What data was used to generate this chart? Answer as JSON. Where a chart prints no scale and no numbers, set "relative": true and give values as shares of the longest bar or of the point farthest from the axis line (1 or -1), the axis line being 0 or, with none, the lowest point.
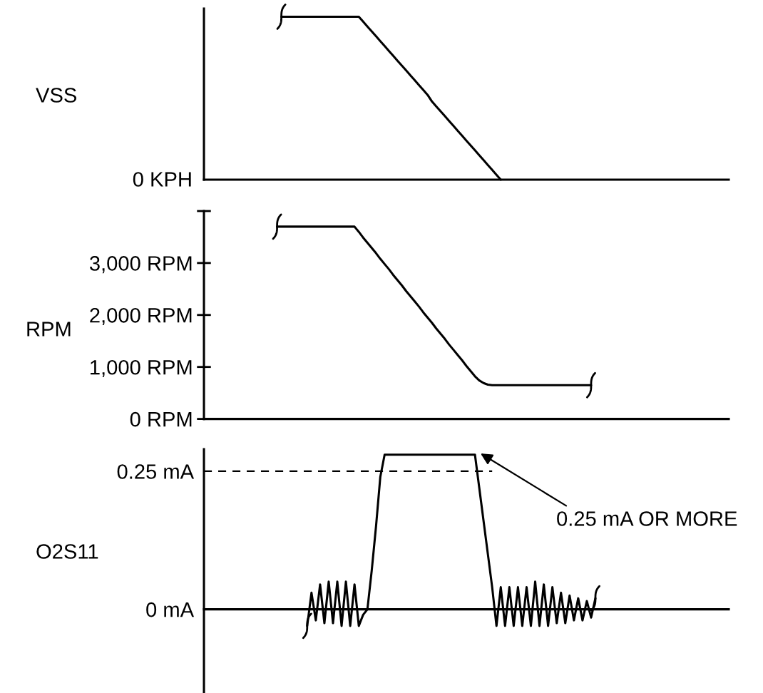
{
  "chart_data": [
    {
      "type": "line",
      "ylabel": "VSS",
      "relative": true,
      "tick_labels": false,
      "categories": [
        null,
        null,
        null,
        null,
        null,
        null,
        null,
        null,
        null,
        null,
        null,
        null,
        null,
        null,
        null,
        null,
        null,
        null,
        null,
        null,
        null,
        null,
        null,
        null,
        null,
        null,
        null,
        null,
        null,
        null,
        null,
        null,
        null,
        null,
        null,
        null,
        null,
        null,
        null,
        null,
        null,
        null,
        null,
        null,
        null,
        null,
        null,
        null,
        null,
        null,
        null,
        null,
        null,
        null,
        null,
        null,
        null,
        null,
        null,
        null,
        null,
        null,
        null,
        null,
        null,
        null,
        null,
        null,
        null,
        null,
        null,
        null,
        null,
        null,
        null,
        null,
        null,
        null,
        null,
        null,
        null,
        null,
        null,
        null,
        null,
        null,
        null,
        null,
        null,
        null,
        null,
        null,
        null,
        null,
        null,
        null,
        null,
        null,
        null,
        null,
        null,
        null,
        null,
        null,
        null,
        null,
        null,
        null,
        null,
        null,
        null,
        null,
        null,
        null,
        null,
        null,
        null,
        null,
        null,
        null,
        null,
        null,
        null
      ],
      "series": [
        {
          "color": "#000000",
          "values": [
            null,
            null,
            null,
            null,
            null,
            null,
            null,
            null,
            null,
            null,
            null,
            null,
            null,
            null,
            null,
            null,
            null,
            null,
            1,
            1,
            1,
            1,
            1,
            1,
            1,
            1,
            1,
            1,
            1,
            1,
            1,
            1,
            1,
            1,
            1,
            1,
            1,
            0.97,
            0.94,
            0.91,
            0.88,
            0.85,
            0.82,
            0.79,
            0.76,
            0.73,
            0.7,
            0.67,
            0.64,
            0.61,
            0.58,
            0.55,
            0.52,
            0.48,
            0.45,
            0.42,
            0.39,
            0.36,
            0.33,
            0.3,
            0.27,
            0.24,
            0.21,
            0.18,
            0.15,
            0.12,
            0.09,
            0.06,
            0.03,
            0,
            null,
            null,
            null,
            null,
            null,
            null,
            null,
            null,
            null,
            null,
            null,
            null,
            null,
            null,
            null,
            null,
            null,
            null,
            null,
            null,
            null,
            null,
            null,
            null,
            null,
            null,
            null,
            null,
            null,
            null,
            null,
            null,
            null,
            null,
            null,
            null,
            null,
            null,
            null,
            null,
            null,
            null,
            null,
            null,
            null,
            null,
            null,
            null,
            null,
            null,
            null,
            null,
            null
          ]
        }
      ],
      "annotations": [
        "0 KPH"
      ]
    },
    {
      "type": "line",
      "ylabel": "RPM",
      "tick_labels": "y",
      "ylim": [
        0,
        4000
      ],
      "yticks": [
        {
          "value": 0,
          "label": "0 RPM"
        },
        {
          "value": 1000,
          "label": "1,000 RPM"
        },
        {
          "value": 2000,
          "label": "2,000 RPM"
        },
        {
          "value": 3000,
          "label": "3,000 RPM"
        },
        {
          "value": 4000,
          "label": null
        }
      ],
      "categories": [
        null,
        null,
        null,
        null,
        null,
        null,
        null,
        null,
        null,
        null,
        null,
        null,
        null,
        null,
        null,
        null,
        null,
        null,
        null,
        null,
        null,
        null,
        null,
        null,
        null,
        null,
        null,
        null,
        null,
        null,
        null,
        null,
        null,
        null,
        null,
        null,
        null,
        null,
        null,
        null,
        null,
        null,
        null,
        null,
        null,
        null,
        null,
        null,
        null,
        null,
        null,
        null,
        null,
        null,
        null,
        null,
        null,
        null,
        null,
        null,
        null,
        null,
        null,
        null,
        null,
        null,
        null,
        null,
        null,
        null,
        null,
        null,
        null,
        null,
        null,
        null,
        null,
        null,
        null,
        null,
        null,
        null,
        null,
        null,
        null,
        null,
        null,
        null,
        null,
        null,
        null,
        null,
        null,
        null,
        null,
        null,
        null,
        null,
        null,
        null,
        null,
        null,
        null,
        null,
        null,
        null,
        null,
        null,
        null,
        null,
        null,
        null,
        null,
        null,
        null,
        null,
        null,
        null,
        null,
        null,
        null,
        null,
        null
      ],
      "series": [
        {
          "color": "#000000",
          "values": [
            null,
            null,
            null,
            null,
            null,
            null,
            null,
            null,
            null,
            null,
            null,
            null,
            null,
            null,
            null,
            null,
            null,
            3700,
            3700,
            3700,
            3700,
            3700,
            3700,
            3700,
            3700,
            3700,
            3700,
            3700,
            3700,
            3700,
            3700,
            3700,
            3700,
            3700,
            3700,
            3700,
            3600,
            3490,
            3390,
            3290,
            3190,
            3080,
            2980,
            2880,
            2770,
            2670,
            2570,
            2460,
            2360,
            2260,
            2160,
            2050,
            1950,
            1850,
            1740,
            1640,
            1540,
            1430,
            1330,
            1230,
            1130,
            1020,
            920,
            820,
            740,
            690,
            660,
            650,
            650,
            650,
            650,
            650,
            650,
            650,
            650,
            650,
            650,
            650,
            650,
            650,
            650,
            650,
            650,
            650,
            650,
            650,
            650,
            650,
            650,
            650,
            650,
            null,
            null,
            null,
            null,
            null,
            null,
            null,
            null,
            null,
            null,
            null,
            null,
            null,
            null,
            null,
            null,
            null,
            null,
            null,
            null,
            null,
            null,
            null,
            null,
            null,
            null,
            null,
            null,
            null,
            null,
            null,
            null
          ]
        }
      ]
    },
    {
      "type": "line",
      "ylabel": "O2S11",
      "tick_labels": "y",
      "ylim": [
        -0.15,
        0.29
      ],
      "yticks": [
        {
          "value": 0,
          "label": "0 mA"
        },
        {
          "value": 0.25,
          "label": "0.25 mA"
        }
      ],
      "categories": [
        null,
        null,
        null,
        null,
        null,
        null,
        null,
        null,
        null,
        null,
        null,
        null,
        null,
        null,
        null,
        null,
        null,
        null,
        null,
        null,
        null,
        null,
        null,
        null,
        null,
        null,
        null,
        null,
        null,
        null,
        null,
        null,
        null,
        null,
        null,
        null,
        null,
        null,
        null,
        null,
        null,
        null,
        null,
        null,
        null,
        null,
        null,
        null,
        null,
        null,
        null,
        null,
        null,
        null,
        null,
        null,
        null,
        null,
        null,
        null,
        null,
        null,
        null,
        null,
        null,
        null,
        null,
        null,
        null,
        null,
        null,
        null,
        null,
        null,
        null,
        null,
        null,
        null,
        null,
        null,
        null,
        null,
        null,
        null,
        null,
        null,
        null,
        null,
        null,
        null,
        null,
        null,
        null,
        null,
        null,
        null,
        null,
        null,
        null,
        null,
        null,
        null,
        null,
        null,
        null,
        null,
        null,
        null,
        null,
        null,
        null,
        null,
        null,
        null,
        null,
        null,
        null,
        null,
        null,
        null,
        null,
        null,
        null
      ],
      "series": [
        {
          "color": "#000000",
          "values": [
            null,
            null,
            null,
            null,
            null,
            null,
            null,
            null,
            null,
            null,
            null,
            null,
            null,
            null,
            null,
            null,
            null,
            null,
            null,
            null,
            null,
            null,
            null,
            null,
            -0.03,
            0.03,
            -0.02,
            0.045,
            -0.025,
            0.05,
            -0.025,
            0.05,
            -0.03,
            0.05,
            -0.03,
            0.045,
            -0.03,
            -0.01,
            0,
            0.07,
            0.15,
            0.24,
            0.28,
            0.28,
            0.28,
            0.28,
            0.28,
            0.28,
            0.28,
            0.28,
            0.28,
            0.28,
            0.28,
            0.28,
            0.28,
            0.28,
            0.28,
            0.28,
            0.28,
            0.28,
            0.28,
            0.28,
            0.28,
            0.28,
            0.22,
            0.16,
            0.1,
            0.04,
            -0.03,
            0.04,
            -0.03,
            0.04,
            -0.03,
            0.04,
            -0.03,
            0.04,
            -0.03,
            0.05,
            -0.03,
            0.045,
            -0.03,
            0.04,
            -0.025,
            0.03,
            -0.025,
            0.025,
            -0.02,
            0.02,
            -0.02,
            0.015,
            -0.015,
            0.02,
            null,
            null,
            null,
            null,
            null,
            null,
            null,
            null,
            null,
            null,
            null,
            null,
            null,
            null,
            null,
            null,
            null,
            null,
            null,
            null,
            null,
            null,
            null,
            null,
            null,
            null,
            null,
            null,
            null,
            null,
            null
          ]
        },
        {
          "color": "#000000",
          "line_style": "dashed",
          "values": [
            0.25,
            0.25,
            0.25,
            0.25,
            0.25,
            0.25,
            0.25,
            0.25,
            0.25,
            0.25,
            0.25,
            0.25,
            0.25,
            0.25,
            0.25,
            0.25,
            0.25,
            0.25,
            0.25,
            0.25,
            0.25,
            0.25,
            0.25,
            0.25,
            0.25,
            0.25,
            0.25,
            0.25,
            0.25,
            0.25,
            0.25,
            0.25,
            0.25,
            0.25,
            0.25,
            0.25,
            0.25,
            0.25,
            0.25,
            0.25,
            0.25,
            0.25,
            0.25,
            0.25,
            0.25,
            0.25,
            0.25,
            0.25,
            0.25,
            0.25,
            0.25,
            0.25,
            0.25,
            0.25,
            0.25,
            0.25,
            0.25,
            0.25,
            0.25,
            0.25,
            0.25,
            0.25,
            0.25,
            0.25,
            0.25,
            0.25,
            0.25,
            0.25,
            null,
            null,
            null,
            null,
            null,
            null,
            null,
            null,
            null,
            null,
            null,
            null,
            null,
            null,
            null,
            null,
            null,
            null,
            null,
            null,
            null,
            null,
            null,
            null,
            null,
            null,
            null,
            null,
            null,
            null,
            null,
            null,
            null,
            null,
            null,
            null,
            null,
            null,
            null,
            null,
            null,
            null,
            null,
            null,
            null,
            null,
            null,
            null,
            null,
            null,
            null,
            null,
            null,
            null,
            null
          ]
        }
      ],
      "annotations": [
        "0.25 mA OR MORE"
      ]
    }
  ]
}
